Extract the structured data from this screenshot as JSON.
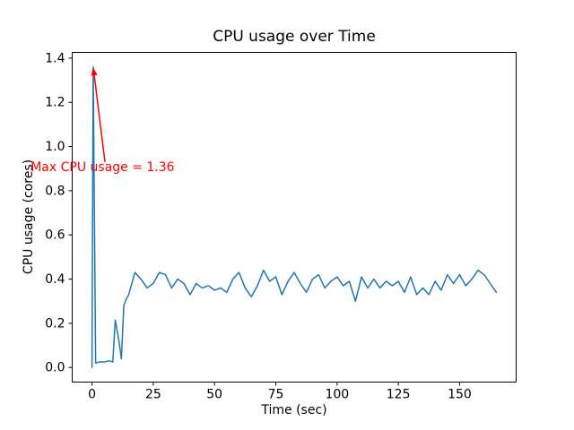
{
  "figure": {
    "background": "#ffffff",
    "axes_color": "#000000",
    "text_color": "#000000"
  },
  "chart_data": {
    "type": "line",
    "title": "CPU usage over Time",
    "xlabel": "Time (sec)",
    "ylabel": "CPU usage (cores)",
    "xlim": [
      -8.25,
      173.25
    ],
    "ylim": [
      -0.068,
      1.428
    ],
    "xticks": [
      0,
      25,
      50,
      75,
      100,
      125,
      150
    ],
    "xtick_labels": [
      "0",
      "25",
      "50",
      "75",
      "100",
      "125",
      "150"
    ],
    "yticks": [
      0.0,
      0.2,
      0.4,
      0.6,
      0.8,
      1.0,
      1.2,
      1.4
    ],
    "ytick_labels": [
      "0.0",
      "0.2",
      "0.4",
      "0.6",
      "0.8",
      "1.0",
      "1.2",
      "1.4"
    ],
    "grid": false,
    "legend": null,
    "max_value": 1.36,
    "series": [
      {
        "name": "CPU usage",
        "color": "#1f77b4",
        "line_width": 1.5,
        "points": [
          [
            0,
            0.0
          ],
          [
            0.5,
            1.36
          ],
          [
            1.5,
            0.02
          ],
          [
            3,
            0.025
          ],
          [
            5,
            0.025
          ],
          [
            7,
            0.03
          ],
          [
            8.5,
            0.025
          ],
          [
            9.5,
            0.215
          ],
          [
            11,
            0.12
          ],
          [
            12,
            0.04
          ],
          [
            13,
            0.28
          ],
          [
            14,
            0.31
          ],
          [
            15,
            0.33
          ],
          [
            17.5,
            0.43
          ],
          [
            20,
            0.4
          ],
          [
            22.5,
            0.36
          ],
          [
            25,
            0.38
          ],
          [
            27.5,
            0.43
          ],
          [
            30,
            0.42
          ],
          [
            32.5,
            0.36
          ],
          [
            35,
            0.4
          ],
          [
            37.5,
            0.38
          ],
          [
            40,
            0.33
          ],
          [
            42.5,
            0.38
          ],
          [
            45,
            0.36
          ],
          [
            47.5,
            0.37
          ],
          [
            50,
            0.35
          ],
          [
            52.5,
            0.36
          ],
          [
            55,
            0.34
          ],
          [
            57.5,
            0.4
          ],
          [
            60,
            0.43
          ],
          [
            62.5,
            0.36
          ],
          [
            65,
            0.32
          ],
          [
            67.5,
            0.37
          ],
          [
            70,
            0.44
          ],
          [
            72.5,
            0.39
          ],
          [
            75,
            0.41
          ],
          [
            77.5,
            0.33
          ],
          [
            80,
            0.39
          ],
          [
            82.5,
            0.43
          ],
          [
            85,
            0.38
          ],
          [
            87.5,
            0.34
          ],
          [
            90,
            0.4
          ],
          [
            92.5,
            0.42
          ],
          [
            95,
            0.36
          ],
          [
            97.5,
            0.39
          ],
          [
            100,
            0.41
          ],
          [
            102.5,
            0.37
          ],
          [
            105,
            0.39
          ],
          [
            107.5,
            0.3
          ],
          [
            110,
            0.41
          ],
          [
            112.5,
            0.36
          ],
          [
            115,
            0.4
          ],
          [
            117.5,
            0.36
          ],
          [
            120,
            0.39
          ],
          [
            122.5,
            0.37
          ],
          [
            125,
            0.39
          ],
          [
            127.5,
            0.34
          ],
          [
            130,
            0.41
          ],
          [
            132.5,
            0.33
          ],
          [
            135,
            0.36
          ],
          [
            137.5,
            0.33
          ],
          [
            140,
            0.39
          ],
          [
            142.5,
            0.35
          ],
          [
            145,
            0.42
          ],
          [
            147.5,
            0.38
          ],
          [
            150,
            0.42
          ],
          [
            152.5,
            0.37
          ],
          [
            155,
            0.4
          ],
          [
            157.5,
            0.44
          ],
          [
            160,
            0.42
          ],
          [
            162.5,
            0.38
          ],
          [
            165,
            0.34
          ]
        ]
      }
    ],
    "annotation": {
      "text": "Max CPU usage = 1.36",
      "color": "#ff0000",
      "xy": [
        0.53,
        1.358
      ],
      "text_pos": [
        -25,
        0.88
      ],
      "arrow_tail": [
        5.3,
        0.93
      ]
    }
  }
}
